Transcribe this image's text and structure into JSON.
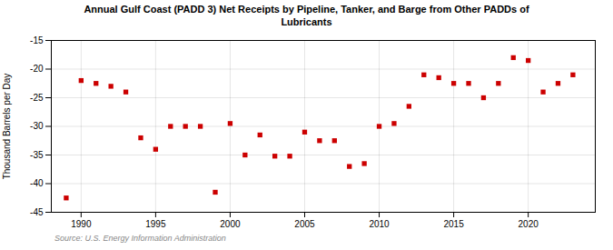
{
  "chart_data": {
    "type": "scatter",
    "title": "Annual Gulf Coast (PADD 3) Net Receipts by Pipeline, Tanker, and Barge from Other PADDs of\nLubricants",
    "ylabel": "Thousand Barrels per Day",
    "source": "Source: U.S. Energy Information Administration",
    "x": [
      1989,
      1990,
      1991,
      1992,
      1993,
      1994,
      1995,
      1996,
      1997,
      1998,
      1999,
      2000,
      2001,
      2002,
      2003,
      2004,
      2005,
      2006,
      2007,
      2008,
      2009,
      2010,
      2011,
      2012,
      2013,
      2014,
      2015,
      2016,
      2017,
      2018,
      2019,
      2020,
      2021,
      2022,
      2023
    ],
    "values": [
      -42.5,
      -22.0,
      -22.5,
      -23.0,
      -24.0,
      -32.0,
      -34.0,
      -30.0,
      -30.0,
      -30.0,
      -41.5,
      -29.5,
      -35.0,
      -31.5,
      -35.2,
      -35.2,
      -31.0,
      -32.5,
      -32.5,
      -37.0,
      -36.5,
      -30.0,
      -29.5,
      -26.5,
      -21.0,
      -21.5,
      -22.5,
      -22.5,
      -25.0,
      -22.5,
      -18.0,
      -18.5,
      -24.0,
      -22.5,
      -21.0
    ],
    "color": "#cc0000",
    "marker": "square",
    "xlim": [
      1988.0,
      2024.5
    ],
    "ylim": [
      -45,
      -15
    ],
    "yticks": [
      -45,
      -40,
      -35,
      -30,
      -25,
      -20,
      -15
    ],
    "xticks": [
      1990,
      1995,
      2000,
      2005,
      2010,
      2015,
      2020
    ],
    "grid": true
  }
}
